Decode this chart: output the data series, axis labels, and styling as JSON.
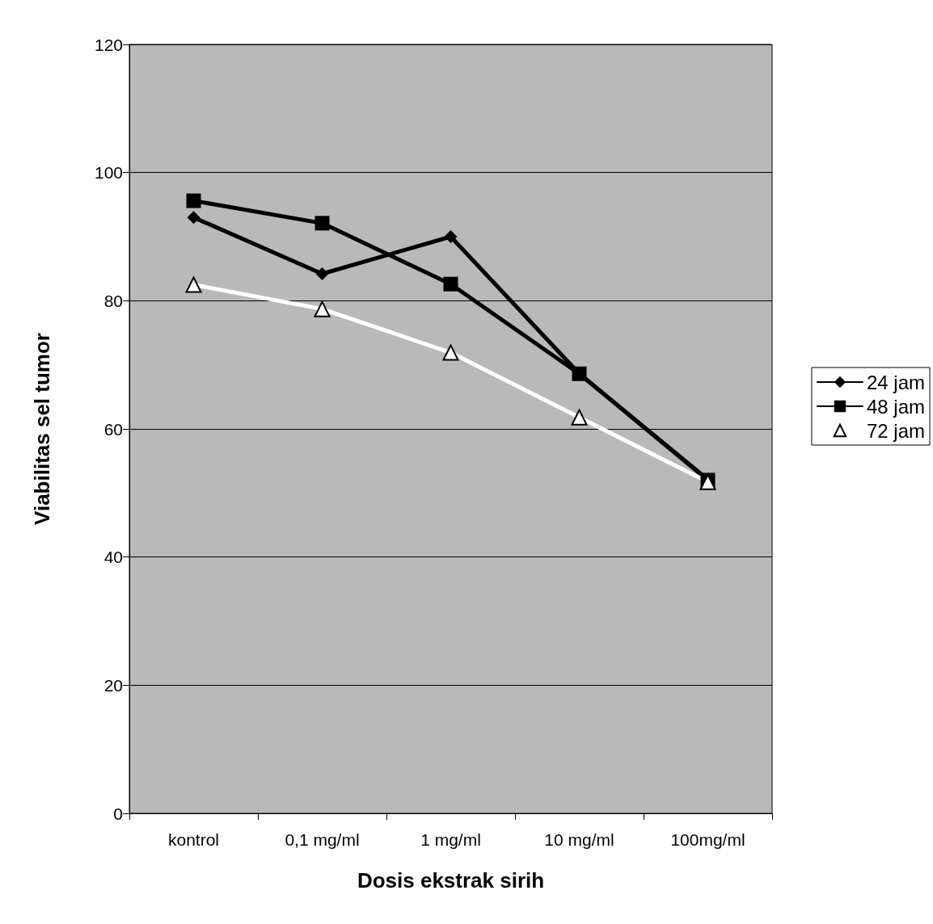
{
  "chart_data": {
    "type": "line",
    "xlabel": "Dosis ekstrak sirih",
    "ylabel": "Viabilitas sel tumor",
    "categories": [
      "kontrol",
      "0,1 mg/ml",
      "1 mg/ml",
      "10 mg/ml",
      "100mg/ml"
    ],
    "series": [
      {
        "name": "24 jam",
        "color": "#000000",
        "marker": "diamond",
        "values": [
          93,
          84.2,
          90,
          68.6,
          52.1
        ]
      },
      {
        "name": "48 jam",
        "color": "#000000",
        "marker": "square",
        "values": [
          95.6,
          92.1,
          82.6,
          68.6,
          52
        ]
      },
      {
        "name": "72 jam",
        "color": "#ffffff",
        "marker": "triangle",
        "values": [
          82.5,
          78.7,
          71.9,
          61.8,
          51.7
        ]
      }
    ],
    "ylim": [
      0,
      120
    ],
    "yticks": [
      0,
      20,
      40,
      60,
      80,
      100,
      120
    ],
    "grid": "y",
    "legend": "right",
    "line_style": "solid"
  }
}
